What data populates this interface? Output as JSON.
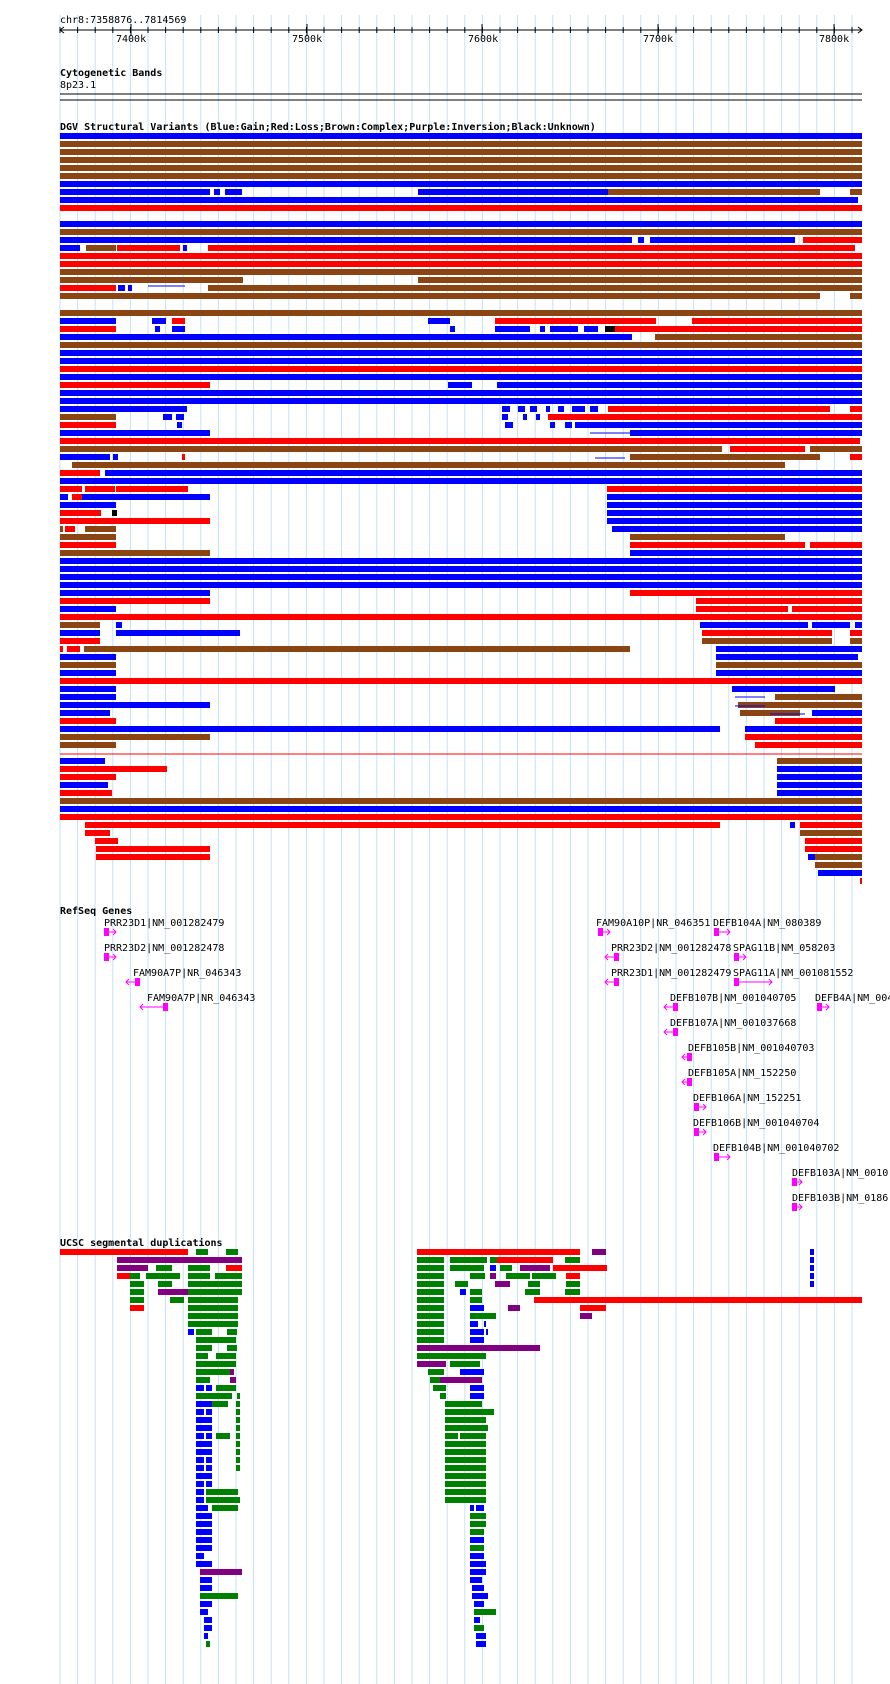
{
  "region": "chr8:7358876..7814569",
  "ruler": {
    "ticks": [
      "7400k",
      "7500k",
      "7600k",
      "7700k",
      "7800k"
    ]
  },
  "tracks": {
    "cytoband": {
      "title": "Cytogenetic Bands",
      "band": "8p23.1"
    },
    "dgv": {
      "title": "DGV Structural Variants (Blue:Gain;Red:Loss;Brown:Complex;Purple:Inversion;Black:Unknown)"
    },
    "refseq": {
      "title": "RefSeq Genes",
      "genes": [
        "PRR23D1|NM_001282479",
        "PRR23D2|NM_001282478",
        "FAM90A7P|NR_046343",
        "FAM90A7P|NR_046343",
        "FAM90A10P|NR_046351",
        "DEFB104A|NM_080389",
        "PRR23D2|NM_001282478",
        "SPAG11B|NM_058203",
        "PRR23D1|NM_001282479",
        "SPAG11A|NM_001081552",
        "DEFB107B|NM_001040705",
        "DEFB4A|NM_004",
        "DEFB107A|NM_001037668",
        "DEFB105B|NM_001040703",
        "DEFB105A|NM_152250",
        "DEFB106A|NM_152251",
        "DEFB106B|NM_001040704",
        "DEFB104B|NM_001040702",
        "DEFB103A|NM_0010",
        "DEFB103B|NM_0186"
      ]
    },
    "segdup": {
      "title": "UCSC segmental duplications"
    }
  },
  "colors": {
    "gain": "#0000ff",
    "loss": "#ff0000",
    "complex": "#8b4513",
    "inversion": "#800080",
    "unknown": "#000000",
    "gene": "#ff00ff",
    "segdup_green": "#008000",
    "grid": "#c6e2f5"
  }
}
